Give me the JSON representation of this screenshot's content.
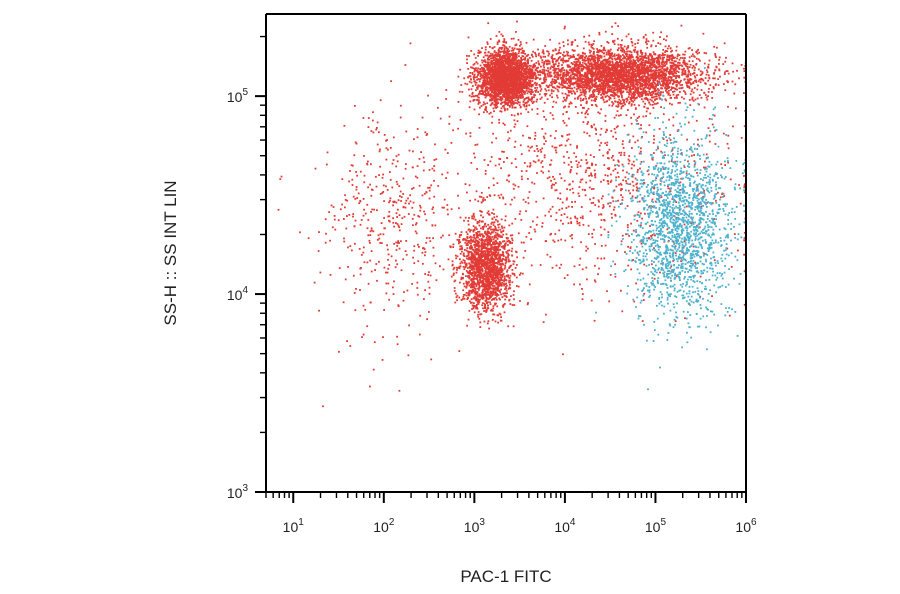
{
  "chart_data": {
    "type": "scatter",
    "title": "",
    "xlabel": "PAC-1 FITC",
    "ylabel": "SS-H :: SS INT LIN",
    "x_scale": "log",
    "y_scale": "log",
    "xlim": [
      5,
      1000000
    ],
    "ylim": [
      1000,
      260000
    ],
    "x_ticks": [
      {
        "base": "10",
        "exp": "1"
      },
      {
        "base": "10",
        "exp": "2"
      },
      {
        "base": "10",
        "exp": "3"
      },
      {
        "base": "10",
        "exp": "4"
      },
      {
        "base": "10",
        "exp": "5"
      },
      {
        "base": "10",
        "exp": "6"
      }
    ],
    "y_ticks": [
      {
        "base": "10",
        "exp": "3"
      },
      {
        "base": "10",
        "exp": "4"
      },
      {
        "base": "10",
        "exp": "5"
      }
    ],
    "grid": false,
    "legend": "none",
    "series": [
      {
        "color": "#e23b36",
        "populations": [
          {
            "center": [
              2200,
              125000
            ],
            "spread": [
              0.16,
              0.07
            ],
            "count": 2600
          },
          {
            "center": [
              40000,
              130000
            ],
            "spread": [
              0.45,
              0.07
            ],
            "count": 3200
          },
          {
            "center": [
              1300,
              14000
            ],
            "spread": [
              0.14,
              0.11
            ],
            "count": 1700
          },
          {
            "center": [
              110,
              22000
            ],
            "spread": [
              0.4,
              0.28
            ],
            "count": 420
          },
          {
            "center": [
              20000,
              40000
            ],
            "spread": [
              0.8,
              0.3
            ],
            "count": 1000
          }
        ]
      },
      {
        "color": "#4bb1cd",
        "populations": [
          {
            "center": [
              180000,
              22000
            ],
            "spread": [
              0.28,
              0.23
            ],
            "count": 1700
          }
        ]
      }
    ]
  }
}
